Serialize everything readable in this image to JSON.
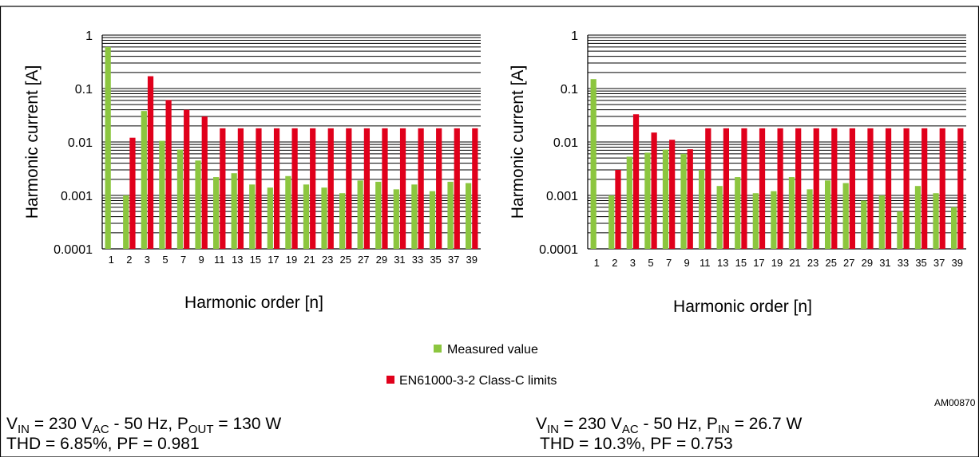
{
  "figure": {
    "title": "",
    "id_label": "AM00870"
  },
  "legend": {
    "items": [
      {
        "label": "Measured value",
        "color": "#8cc63f"
      },
      {
        "label": "EN61000-3-2 Class-C limits",
        "color": "#e0001b"
      }
    ]
  },
  "conditions": {
    "left": {
      "line1": [
        {
          "t": "V"
        },
        {
          "t": "IN",
          "sub": true
        },
        {
          "t": " = 230 V"
        },
        {
          "t": "AC",
          "sub": true
        },
        {
          "t": " - 50 Hz, P"
        },
        {
          "t": "OUT",
          "sub": true
        },
        {
          "t": " = 130 W"
        }
      ],
      "line2": "THD = 6.85%, PF = 0.981"
    },
    "right": {
      "line1": [
        {
          "t": "V"
        },
        {
          "t": "IN",
          "sub": true
        },
        {
          "t": " = 230 V"
        },
        {
          "t": "AC",
          "sub": true
        },
        {
          "t": " - 50 Hz, P"
        },
        {
          "t": "IN",
          "sub": true
        },
        {
          "t": " = 26.7 W"
        }
      ],
      "line2": "THD = 10.3%, PF = 0.753"
    }
  },
  "chart_data": [
    {
      "type": "bar",
      "xlabel": "Harmonic order [n]",
      "ylabel": "Harmonic current [A]",
      "yscale": "log",
      "ylim": [
        0.0001,
        1
      ],
      "yticks": [
        "1",
        "0.1",
        "0.01",
        "0.001",
        "0.0001"
      ],
      "categories": [
        "1",
        "2",
        "3",
        "5",
        "7",
        "9",
        "11",
        "13",
        "15",
        "17",
        "19",
        "21",
        "23",
        "25",
        "27",
        "29",
        "31",
        "33",
        "35",
        "37",
        "39"
      ],
      "series": [
        {
          "name": "Measured value",
          "color": "#8cc63f",
          "values": [
            0.6,
            0.001,
            0.038,
            0.0105,
            0.0072,
            0.0045,
            0.0022,
            0.0026,
            0.0016,
            0.0014,
            0.0023,
            0.0016,
            0.0014,
            0.0011,
            0.0019,
            0.0018,
            0.0013,
            0.0016,
            0.0012,
            0.0018,
            0.0017
          ]
        },
        {
          "name": "EN61000-3-2 Class-C limits",
          "color": "#e0001b",
          "values": [
            null,
            0.012,
            0.17,
            0.061,
            0.04,
            0.03,
            0.018,
            0.018,
            0.018,
            0.018,
            0.018,
            0.018,
            0.018,
            0.018,
            0.018,
            0.018,
            0.018,
            0.018,
            0.018,
            0.018,
            0.018
          ]
        }
      ]
    },
    {
      "type": "bar",
      "xlabel": "Harmonic order [n]",
      "ylabel": "Harmonic current [A]",
      "yscale": "log",
      "ylim": [
        0.0001,
        1
      ],
      "yticks": [
        "1",
        "0.1",
        "0.01",
        "0.001",
        "0.0001"
      ],
      "categories": [
        "1",
        "2",
        "3",
        "5",
        "7",
        "9",
        "11",
        "13",
        "15",
        "17",
        "19",
        "21",
        "23",
        "25",
        "27",
        "29",
        "31",
        "33",
        "35",
        "37",
        "39"
      ],
      "series": [
        {
          "name": "Measured value",
          "color": "#8cc63f",
          "values": [
            0.15,
            0.001,
            0.0053,
            0.0063,
            0.0072,
            0.006,
            0.003,
            0.0015,
            0.0022,
            0.0011,
            0.0012,
            0.0022,
            0.0013,
            0.0019,
            0.0017,
            0.0008,
            0.001,
            0.0005,
            0.0015,
            0.0011,
            0.0006
          ]
        },
        {
          "name": "EN61000-3-2 Class-C limits",
          "color": "#e0001b",
          "values": [
            null,
            0.003,
            0.033,
            0.015,
            0.011,
            0.0073,
            0.018,
            0.018,
            0.018,
            0.018,
            0.018,
            0.018,
            0.018,
            0.018,
            0.018,
            0.018,
            0.018,
            0.018,
            0.018,
            0.018,
            0.018
          ]
        }
      ]
    }
  ]
}
